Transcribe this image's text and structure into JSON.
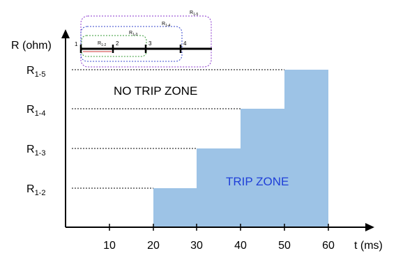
{
  "y_axis": {
    "label": "R (ohm)",
    "levels": [
      {
        "main": "R",
        "sub": "1-2"
      },
      {
        "main": "R",
        "sub": "1-3"
      },
      {
        "main": "R",
        "sub": "1-4"
      },
      {
        "main": "R",
        "sub": "1-5"
      }
    ]
  },
  "x_axis": {
    "label": "t (ms)",
    "ticks": [
      "10",
      "20",
      "30",
      "40",
      "50",
      "60"
    ]
  },
  "zones": {
    "no_trip": "NO TRIP ZONE",
    "trip": "TRIP ZONE",
    "trip_fill": "#9dc3e6",
    "trip_text_color": "#1f3fd8"
  },
  "inset": {
    "bus_labels": [
      "1",
      "2",
      "3",
      "4"
    ],
    "ranges": [
      {
        "main": "R",
        "sub": "1-2",
        "color": "#cc3333"
      },
      {
        "main": "R",
        "sub": "1-3",
        "color": "#339933"
      },
      {
        "main": "R",
        "sub": "1-4",
        "color": "#3344cc"
      },
      {
        "main": "R",
        "sub": "1-5",
        "color": "#8833cc"
      }
    ]
  }
}
